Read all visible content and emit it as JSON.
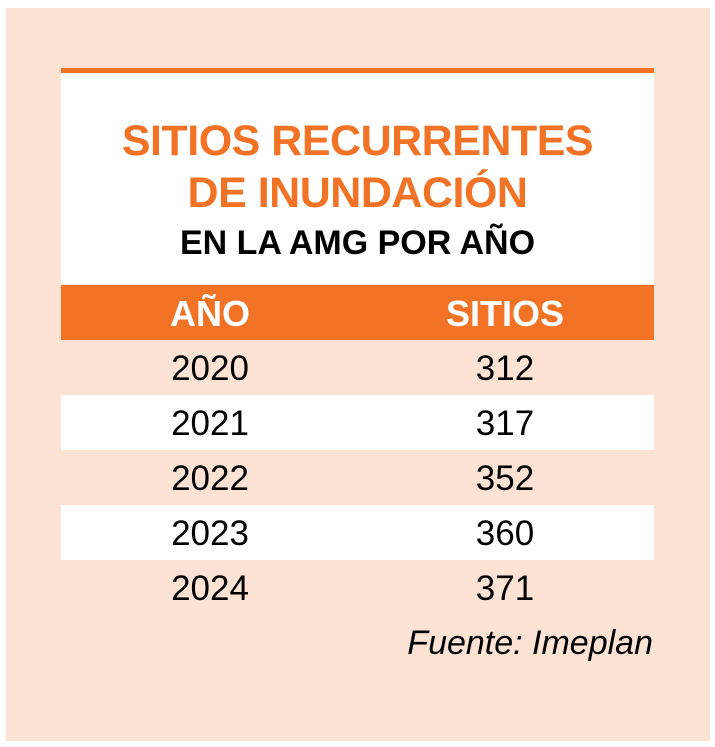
{
  "title": {
    "line1": "SITIOS RECURRENTES",
    "line2": "DE INUNDACIÓN",
    "line3": "EN LA AMG POR AÑO"
  },
  "table": {
    "headers": [
      "AÑO",
      "SITIOS"
    ],
    "rows": [
      [
        "2020",
        "312"
      ],
      [
        "2021",
        "317"
      ],
      [
        "2022",
        "352"
      ],
      [
        "2023",
        "360"
      ],
      [
        "2024",
        "371"
      ]
    ]
  },
  "source": "Fuente: Imeplan",
  "colors": {
    "accent": "#f37326",
    "background": "#fde3d3"
  }
}
